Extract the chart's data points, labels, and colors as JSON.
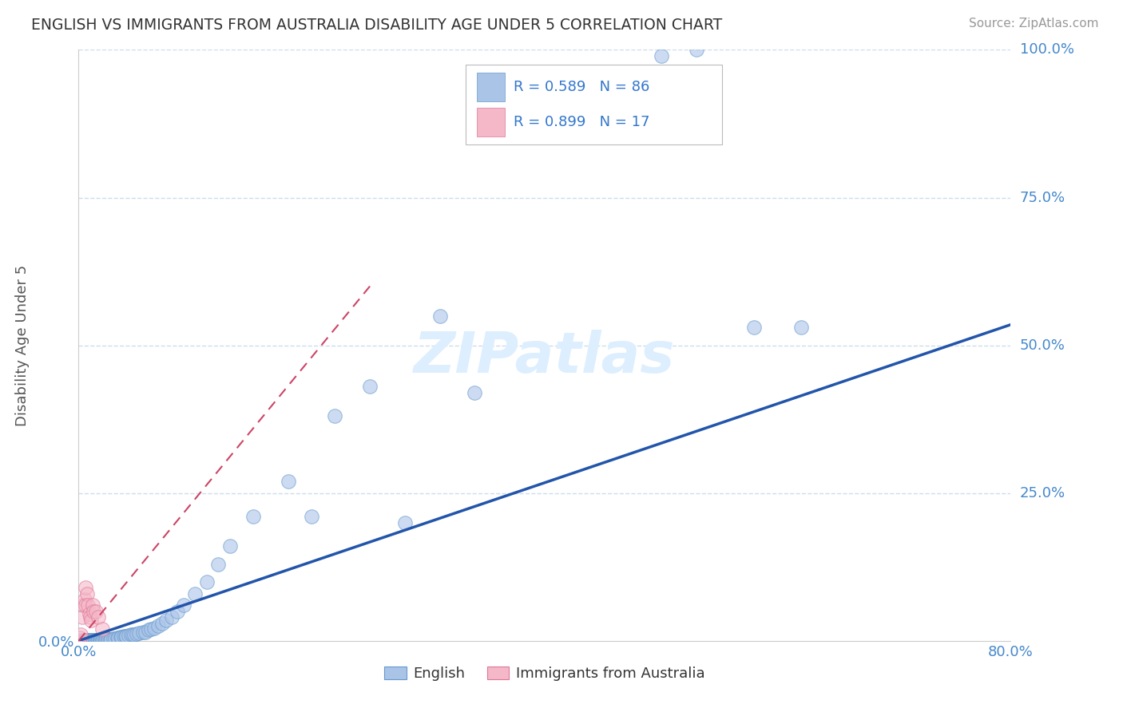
{
  "title": "ENGLISH VS IMMIGRANTS FROM AUSTRALIA DISABILITY AGE UNDER 5 CORRELATION CHART",
  "source_text": "Source: ZipAtlas.com",
  "ylabel": "Disability Age Under 5",
  "xlim": [
    0.0,
    0.8
  ],
  "ylim": [
    0.0,
    1.0
  ],
  "english_r": 0.589,
  "english_n": 86,
  "immigrants_r": 0.899,
  "immigrants_n": 17,
  "english_color": "#aac4e8",
  "english_edge_color": "#6699cc",
  "english_line_color": "#2255aa",
  "immigrants_color": "#f5b8c8",
  "immigrants_edge_color": "#dd7799",
  "immigrants_line_color": "#cc4466",
  "bg_color": "#ffffff",
  "grid_color": "#ccddee",
  "title_color": "#333333",
  "axis_label_color": "#4488cc",
  "legend_text_color": "#3377cc",
  "watermark_color": "#ddeeff",
  "english_scatter_x": [
    0.001,
    0.002,
    0.003,
    0.004,
    0.005,
    0.005,
    0.006,
    0.006,
    0.007,
    0.007,
    0.008,
    0.008,
    0.009,
    0.009,
    0.01,
    0.01,
    0.011,
    0.011,
    0.012,
    0.012,
    0.013,
    0.013,
    0.014,
    0.014,
    0.015,
    0.015,
    0.016,
    0.016,
    0.017,
    0.017,
    0.018,
    0.018,
    0.019,
    0.019,
    0.02,
    0.02,
    0.021,
    0.022,
    0.023,
    0.024,
    0.025,
    0.026,
    0.027,
    0.028,
    0.03,
    0.031,
    0.033,
    0.034,
    0.036,
    0.037,
    0.039,
    0.04,
    0.041,
    0.043,
    0.045,
    0.046,
    0.048,
    0.05,
    0.052,
    0.055,
    0.057,
    0.06,
    0.062,
    0.065,
    0.068,
    0.072,
    0.075,
    0.08,
    0.085,
    0.09,
    0.1,
    0.11,
    0.12,
    0.13,
    0.15,
    0.18,
    0.2,
    0.22,
    0.25,
    0.28,
    0.31,
    0.34,
    0.5,
    0.53,
    0.58,
    0.62
  ],
  "english_scatter_y": [
    0.0,
    0.0,
    0.0,
    0.001,
    0.0,
    0.001,
    0.0,
    0.001,
    0.0,
    0.001,
    0.0,
    0.001,
    0.0,
    0.001,
    0.0,
    0.001,
    0.0,
    0.001,
    0.0,
    0.001,
    0.0,
    0.001,
    0.0,
    0.001,
    0.0,
    0.001,
    0.0,
    0.001,
    0.0,
    0.001,
    0.0,
    0.001,
    0.0,
    0.001,
    0.0,
    0.001,
    0.002,
    0.002,
    0.002,
    0.002,
    0.003,
    0.003,
    0.003,
    0.003,
    0.004,
    0.004,
    0.005,
    0.005,
    0.006,
    0.006,
    0.008,
    0.008,
    0.008,
    0.009,
    0.01,
    0.01,
    0.011,
    0.012,
    0.013,
    0.014,
    0.015,
    0.018,
    0.02,
    0.022,
    0.025,
    0.03,
    0.035,
    0.04,
    0.05,
    0.06,
    0.08,
    0.1,
    0.13,
    0.16,
    0.21,
    0.27,
    0.21,
    0.38,
    0.43,
    0.2,
    0.55,
    0.42,
    0.99,
    1.0,
    0.53,
    0.53
  ],
  "immigrants_scatter_x": [
    0.001,
    0.002,
    0.003,
    0.004,
    0.005,
    0.006,
    0.006,
    0.007,
    0.008,
    0.009,
    0.01,
    0.011,
    0.012,
    0.013,
    0.015,
    0.017,
    0.02
  ],
  "immigrants_scatter_y": [
    0.005,
    0.01,
    0.04,
    0.06,
    0.07,
    0.09,
    0.06,
    0.08,
    0.06,
    0.045,
    0.04,
    0.035,
    0.06,
    0.05,
    0.05,
    0.04,
    0.02
  ],
  "english_trend": [
    0.0,
    0.8,
    0.0,
    0.535
  ],
  "immigrants_trend_full": [
    0.0,
    0.25,
    0.0,
    0.6
  ]
}
